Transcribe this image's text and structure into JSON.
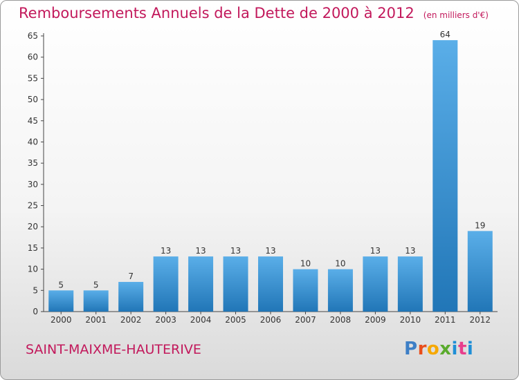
{
  "title": "Remboursements Annuels de la Dette de 2000 à 2012",
  "unit": "(en milliers d'€)",
  "commune": "SAINT-MAIXME-HAUTERIVE",
  "logo": {
    "letters": [
      "P",
      "r",
      "o",
      "x",
      "i",
      "t",
      "i"
    ]
  },
  "colors": {
    "title": "#c2185b",
    "bar_top": "#5aaee8",
    "bar_bottom": "#2176b7",
    "axis": "#444444"
  },
  "chart_data": {
    "type": "bar",
    "categories": [
      "2000",
      "2001",
      "2002",
      "2003",
      "2004",
      "2005",
      "2006",
      "2007",
      "2008",
      "2009",
      "2010",
      "2011",
      "2012"
    ],
    "values": [
      5,
      5,
      7,
      13,
      13,
      13,
      13,
      10,
      10,
      13,
      13,
      64,
      19
    ],
    "data_labels": [
      "5",
      "5",
      "7",
      "13",
      "13",
      "13",
      "13",
      "10",
      "10",
      "13",
      "13",
      "64",
      "19"
    ],
    "yticks": [
      0,
      5,
      10,
      15,
      20,
      25,
      30,
      35,
      40,
      45,
      50,
      55,
      60,
      65
    ],
    "ylim": [
      0,
      65
    ],
    "grid": false,
    "legend": "none"
  }
}
